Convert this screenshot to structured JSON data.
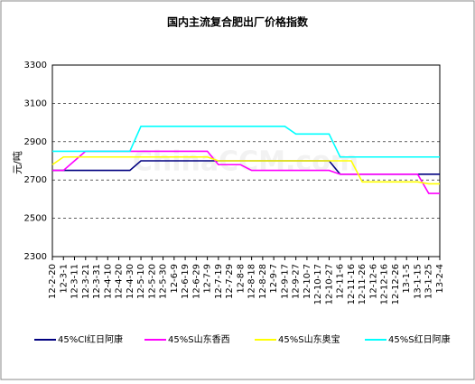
{
  "chart_data": {
    "type": "line",
    "title": "国内主流复合肥出厂价格指数",
    "y_label": "元/吨",
    "watermark": "ChinaCCM.com",
    "categories": [
      "12-2-20",
      "12-3-1",
      "12-3-11",
      "12-3-21",
      "12-3-31",
      "12-4-10",
      "12-4-20",
      "12-4-30",
      "12-5-10",
      "12-5-20",
      "12-5-30",
      "12-6-9",
      "12-6-19",
      "12-6-29",
      "12-7-9",
      "12-7-19",
      "12-7-29",
      "12-8-8",
      "12-8-18",
      "12-8-28",
      "12-9-7",
      "12-9-17",
      "12-9-27",
      "12-10-7",
      "12-10-17",
      "12-10-27",
      "12-11-6",
      "12-11-16",
      "12-11-26",
      "12-12-6",
      "12-12-16",
      "12-12-26",
      "13-1-5",
      "13-1-15",
      "13-1-25",
      "13-2-4"
    ],
    "series": [
      {
        "name": "45%Cl红日阿康",
        "color": "#000080",
        "values": [
          2750,
          2750,
          2750,
          2750,
          2750,
          2750,
          2750,
          2750,
          2800,
          2800,
          2800,
          2800,
          2800,
          2800,
          2800,
          2800,
          2800,
          2800,
          2800,
          2800,
          2800,
          2800,
          2800,
          2800,
          2800,
          2800,
          2730,
          2730,
          2730,
          2730,
          2730,
          2730,
          2730,
          2730,
          2730,
          2730
        ]
      },
      {
        "name": "45%S山东香西",
        "color": "#ff00ff",
        "values": [
          2750,
          2750,
          2800,
          2850,
          2850,
          2850,
          2850,
          2850,
          2850,
          2850,
          2850,
          2850,
          2850,
          2850,
          2850,
          2780,
          2780,
          2780,
          2750,
          2750,
          2750,
          2750,
          2750,
          2750,
          2750,
          2750,
          2730,
          2730,
          2730,
          2730,
          2730,
          2730,
          2730,
          2730,
          2630,
          2630
        ]
      },
      {
        "name": "45%S山东奥宝",
        "color": "#ffff00",
        "values": [
          2780,
          2820,
          2820,
          2820,
          2820,
          2820,
          2820,
          2820,
          2820,
          2820,
          2820,
          2820,
          2820,
          2820,
          2820,
          2800,
          2800,
          2800,
          2800,
          2800,
          2800,
          2800,
          2800,
          2800,
          2800,
          2800,
          2800,
          2800,
          2690,
          2690,
          2690,
          2690,
          2690,
          2690,
          2680,
          2680
        ]
      },
      {
        "name": "45%S红日阿康",
        "color": "#00ffff",
        "values": [
          2850,
          2850,
          2850,
          2850,
          2850,
          2850,
          2850,
          2850,
          2980,
          2980,
          2980,
          2980,
          2980,
          2980,
          2980,
          2980,
          2980,
          2980,
          2980,
          2980,
          2980,
          2980,
          2940,
          2940,
          2940,
          2940,
          2820,
          2820,
          2820,
          2820,
          2820,
          2820,
          2820,
          2820,
          2820,
          2820
        ]
      }
    ],
    "ylim": [
      2300,
      3300
    ],
    "yticks": [
      2300,
      2500,
      2700,
      2900,
      3100,
      3300
    ],
    "grid": true
  }
}
